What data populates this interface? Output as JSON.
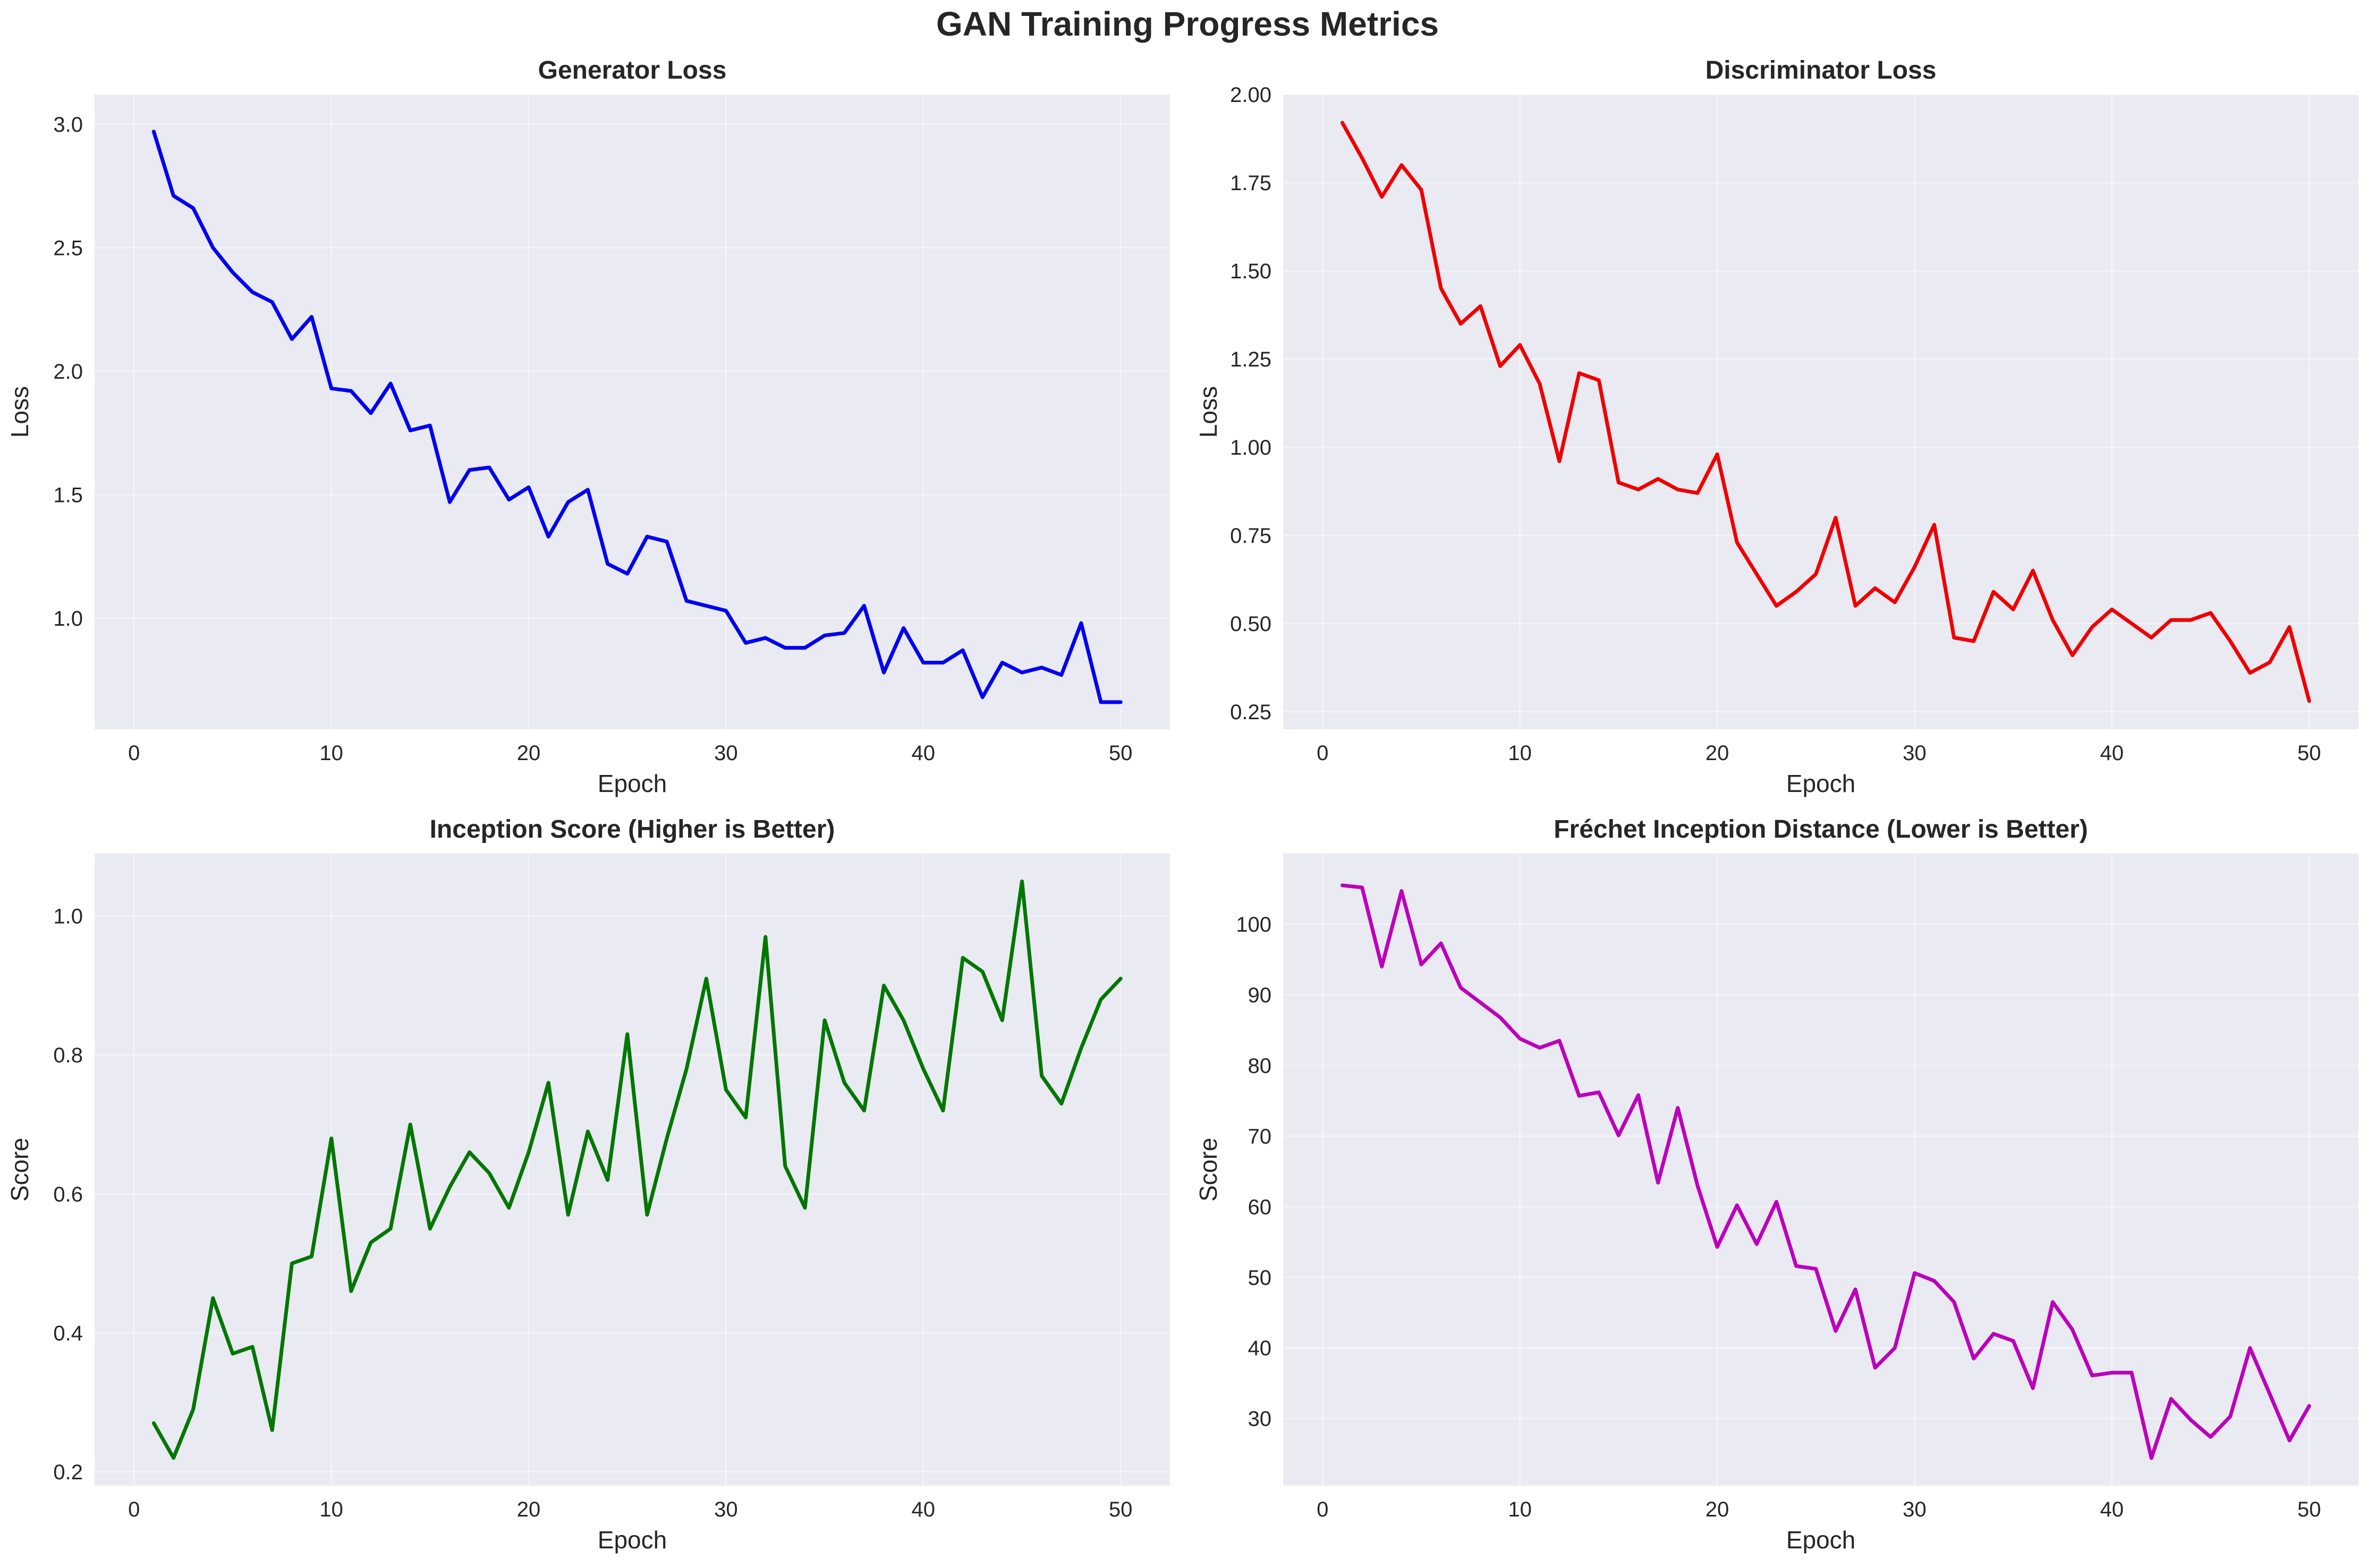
{
  "figure": {
    "title": "GAN Training Progress Metrics"
  },
  "chart_data": [
    {
      "id": "gen",
      "type": "line",
      "title": "Generator Loss",
      "xlabel": "Epoch",
      "ylabel": "Loss",
      "xlim": [
        -2,
        52.5
      ],
      "ylim": [
        0.55,
        3.12
      ],
      "xticks": [
        0,
        10,
        20,
        30,
        40,
        50
      ],
      "yticks": [
        1.0,
        1.5,
        2.0,
        2.5,
        3.0
      ],
      "ytick_labels": [
        "1.0",
        "1.5",
        "2.0",
        "2.5",
        "3.0"
      ],
      "grid": true,
      "series": [
        {
          "color": "#0000ee",
          "x": [
            1,
            2,
            3,
            4,
            5,
            6,
            7,
            8,
            9,
            10,
            11,
            12,
            13,
            14,
            15,
            16,
            17,
            18,
            19,
            20,
            21,
            22,
            23,
            24,
            25,
            26,
            27,
            28,
            29,
            30,
            31,
            32,
            33,
            34,
            35,
            36,
            37,
            38,
            39,
            40,
            41,
            42,
            43,
            44,
            45,
            46,
            47,
            48,
            49,
            50
          ],
          "values": [
            2.97,
            2.71,
            2.66,
            2.5,
            2.4,
            2.32,
            2.28,
            2.13,
            2.22,
            1.93,
            1.92,
            1.83,
            1.95,
            1.76,
            1.78,
            1.47,
            1.6,
            1.61,
            1.48,
            1.53,
            1.33,
            1.47,
            1.52,
            1.22,
            1.18,
            1.33,
            1.31,
            1.07,
            1.05,
            1.03,
            0.9,
            0.92,
            0.88,
            0.88,
            0.93,
            0.94,
            1.05,
            0.78,
            0.96,
            0.82,
            0.82,
            0.87,
            0.68,
            0.82,
            0.78,
            0.8,
            0.77,
            0.98,
            0.66,
            0.66
          ]
        }
      ]
    },
    {
      "id": "disc",
      "type": "line",
      "title": "Discriminator Loss",
      "xlabel": "Epoch",
      "ylabel": "Loss",
      "xlim": [
        -2,
        52.5
      ],
      "ylim": [
        0.2,
        2.0
      ],
      "xticks": [
        0,
        10,
        20,
        30,
        40,
        50
      ],
      "yticks": [
        0.25,
        0.5,
        0.75,
        1.0,
        1.25,
        1.5,
        1.75,
        2.0
      ],
      "ytick_labels": [
        "0.25",
        "0.50",
        "0.75",
        "1.00",
        "1.25",
        "1.50",
        "1.75",
        "2.00"
      ],
      "grid": true,
      "series": [
        {
          "color": "#ee0000",
          "x": [
            1,
            2,
            3,
            4,
            5,
            6,
            7,
            8,
            9,
            10,
            11,
            12,
            13,
            14,
            15,
            16,
            17,
            18,
            19,
            20,
            21,
            22,
            23,
            24,
            25,
            26,
            27,
            28,
            29,
            30,
            31,
            32,
            33,
            34,
            35,
            36,
            37,
            38,
            39,
            40,
            41,
            42,
            43,
            44,
            45,
            46,
            47,
            48,
            49,
            50
          ],
          "values": [
            1.92,
            1.82,
            1.71,
            1.8,
            1.73,
            1.45,
            1.35,
            1.4,
            1.23,
            1.29,
            1.18,
            0.96,
            1.21,
            1.19,
            0.9,
            0.88,
            0.91,
            0.88,
            0.87,
            0.98,
            0.73,
            0.64,
            0.55,
            0.59,
            0.64,
            0.8,
            0.55,
            0.6,
            0.56,
            0.66,
            0.78,
            0.46,
            0.45,
            0.59,
            0.54,
            0.65,
            0.51,
            0.41,
            0.49,
            0.54,
            0.5,
            0.46,
            0.51,
            0.51,
            0.53,
            0.45,
            0.36,
            0.39,
            0.49,
            0.28
          ]
        }
      ]
    },
    {
      "id": "is",
      "type": "line",
      "title": "Inception Score (Higher is Better)",
      "xlabel": "Epoch",
      "ylabel": "Score",
      "xlim": [
        -2,
        52.5
      ],
      "ylim": [
        0.18,
        1.09
      ],
      "xticks": [
        0,
        10,
        20,
        30,
        40,
        50
      ],
      "yticks": [
        0.2,
        0.4,
        0.6,
        0.8,
        1.0
      ],
      "ytick_labels": [
        "0.2",
        "0.4",
        "0.6",
        "0.8",
        "1.0"
      ],
      "grid": true,
      "series": [
        {
          "color": "#007700",
          "x": [
            1,
            2,
            3,
            4,
            5,
            6,
            7,
            8,
            9,
            10,
            11,
            12,
            13,
            14,
            15,
            16,
            17,
            18,
            19,
            20,
            21,
            22,
            23,
            24,
            25,
            26,
            27,
            28,
            29,
            30,
            31,
            32,
            33,
            34,
            35,
            36,
            37,
            38,
            39,
            40,
            41,
            42,
            43,
            44,
            45,
            46,
            47,
            48,
            49,
            50
          ],
          "values": [
            0.27,
            0.22,
            0.29,
            0.45,
            0.37,
            0.38,
            0.26,
            0.5,
            0.51,
            0.68,
            0.46,
            0.53,
            0.55,
            0.7,
            0.55,
            0.61,
            0.66,
            0.63,
            0.58,
            0.66,
            0.76,
            0.57,
            0.69,
            0.62,
            0.83,
            0.57,
            0.68,
            0.78,
            0.91,
            0.75,
            0.71,
            0.97,
            0.64,
            0.58,
            0.85,
            0.76,
            0.72,
            0.9,
            0.85,
            0.78,
            0.72,
            0.94,
            0.92,
            0.85,
            1.05,
            0.77,
            0.73,
            0.81,
            0.88,
            0.91
          ]
        }
      ]
    },
    {
      "id": "fid",
      "type": "line",
      "title": "Fréchet Inception Distance (Lower is Better)",
      "xlabel": "Epoch",
      "ylabel": "Score",
      "xlim": [
        -2,
        52.5
      ],
      "ylim": [
        20.5,
        110
      ],
      "xticks": [
        0,
        10,
        20,
        30,
        40,
        50
      ],
      "yticks": [
        30,
        40,
        50,
        60,
        70,
        80,
        90,
        100
      ],
      "ytick_labels": [
        "30",
        "40",
        "50",
        "60",
        "70",
        "80",
        "90",
        "100"
      ],
      "grid": true,
      "series": [
        {
          "color": "#bb00bb",
          "x": [
            1,
            2,
            3,
            4,
            5,
            6,
            7,
            8,
            9,
            10,
            11,
            12,
            13,
            14,
            15,
            16,
            17,
            18,
            19,
            20,
            21,
            22,
            23,
            24,
            25,
            26,
            27,
            28,
            29,
            30,
            31,
            32,
            33,
            34,
            35,
            36,
            37,
            38,
            39,
            40,
            41,
            42,
            43,
            44,
            45,
            46,
            47,
            48,
            49,
            50
          ],
          "values": [
            105.5,
            105.2,
            94.0,
            104.7,
            94.3,
            97.3,
            91.0,
            88.9,
            86.8,
            83.8,
            82.5,
            83.5,
            75.7,
            76.2,
            70.1,
            75.8,
            63.4,
            74.0,
            63.0,
            54.3,
            60.2,
            54.7,
            60.7,
            51.6,
            51.2,
            42.4,
            48.3,
            37.2,
            40.0,
            50.6,
            49.5,
            46.5,
            38.5,
            42.0,
            41.0,
            34.3,
            46.5,
            42.6,
            36.1,
            36.5,
            36.5,
            24.4,
            32.8,
            29.8,
            27.4,
            30.3,
            40.0,
            33.5,
            26.9,
            31.8
          ]
        }
      ]
    }
  ]
}
